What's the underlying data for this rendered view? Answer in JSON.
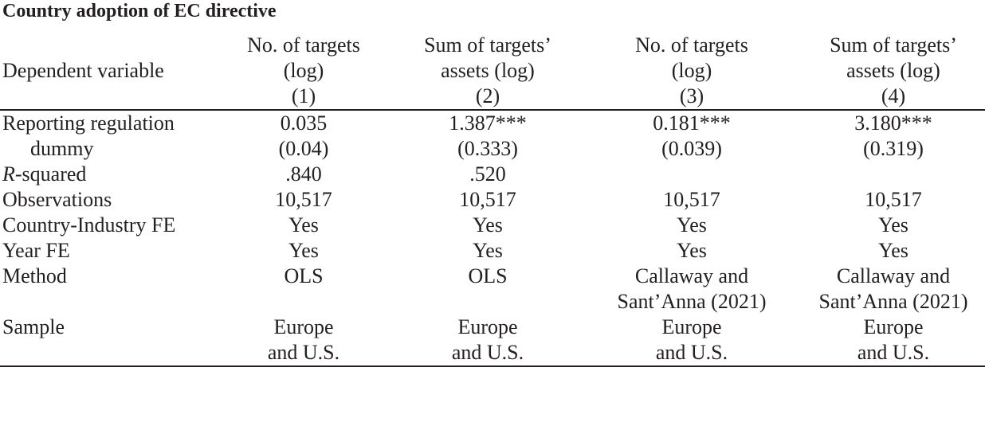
{
  "title": "Country adoption of EC directive",
  "header": {
    "row_label": "Dependent variable",
    "columns": [
      {
        "line1": "No. of targets",
        "line2": "(log)",
        "number": "(1)"
      },
      {
        "line1": "Sum of targets’",
        "line2": "assets (log)",
        "number": "(2)"
      },
      {
        "line1": "No. of targets",
        "line2": "(log)",
        "number": "(3)"
      },
      {
        "line1": "Sum of targets’",
        "line2": "assets (log)",
        "number": "(4)"
      }
    ]
  },
  "rows": {
    "reporting": {
      "label_line1": "Reporting regulation",
      "label_line2": "dummy",
      "coef": [
        "0.035",
        "1.387***",
        "0.181***",
        "3.180***"
      ],
      "se": [
        "(0.04)",
        "(0.333)",
        "(0.039)",
        "(0.319)"
      ]
    },
    "r_squared": {
      "label_italic": "R",
      "label_rest": "-squared",
      "values": [
        ".840",
        ".520",
        "",
        ""
      ]
    },
    "observations": {
      "label": "Observations",
      "values": [
        "10,517",
        "10,517",
        "10,517",
        "10,517"
      ]
    },
    "country_industry_fe": {
      "label": "Country-Industry FE",
      "values": [
        "Yes",
        "Yes",
        "Yes",
        "Yes"
      ]
    },
    "year_fe": {
      "label": "Year FE",
      "values": [
        "Yes",
        "Yes",
        "Yes",
        "Yes"
      ]
    },
    "method": {
      "label": "Method",
      "line1": [
        "OLS",
        "OLS",
        "Callaway and",
        "Callaway and"
      ],
      "line2": [
        "",
        "",
        "Sant’Anna (2021)",
        "Sant’Anna (2021)"
      ]
    },
    "sample": {
      "label": "Sample",
      "line1": [
        "Europe",
        "Europe",
        "Europe",
        "Europe"
      ],
      "line2": [
        "and U.S.",
        "and U.S.",
        "and U.S.",
        "and U.S."
      ]
    }
  }
}
